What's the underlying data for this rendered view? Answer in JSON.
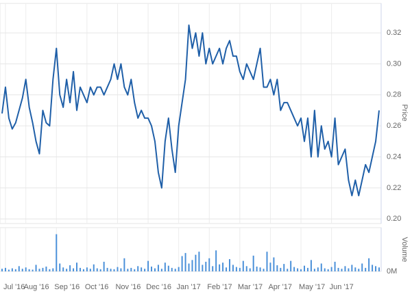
{
  "chart_data": [
    {
      "type": "line",
      "y_label": "Price",
      "color": "#1f5fa8",
      "grid": true,
      "categories": [
        null,
        "Jul '16",
        null,
        null,
        null,
        null,
        null,
        "Aug '16",
        null,
        null,
        null,
        null,
        null,
        null,
        null,
        null,
        "Sep '16",
        null,
        null,
        null,
        null,
        null,
        null,
        null,
        null,
        "Oct '16",
        null,
        null,
        null,
        null,
        null,
        null,
        null,
        null,
        "Nov '16",
        null,
        null,
        null,
        null,
        null,
        null,
        null,
        null,
        "Dec '16",
        null,
        null,
        null,
        null,
        null,
        null,
        null,
        null,
        "Jan '17",
        null,
        null,
        null,
        null,
        null,
        null,
        null,
        null,
        "Feb '17",
        null,
        null,
        null,
        null,
        null,
        null,
        null,
        null,
        "Mar '17",
        null,
        null,
        null,
        null,
        null,
        null,
        null,
        null,
        "Apr '17",
        null,
        null,
        null,
        null,
        null,
        null,
        null,
        null,
        "May '17",
        null,
        null,
        null,
        null,
        null,
        null,
        null,
        null,
        "Jun '17",
        null,
        null,
        null,
        null,
        null,
        null,
        null,
        null,
        null,
        null,
        null,
        null,
        null,
        null
      ],
      "values": [
        0.268,
        0.285,
        0.265,
        0.258,
        0.262,
        0.27,
        0.278,
        0.29,
        0.272,
        0.262,
        0.25,
        0.242,
        0.27,
        0.262,
        0.26,
        0.29,
        0.31,
        0.28,
        0.272,
        0.29,
        0.275,
        0.295,
        0.27,
        0.285,
        0.28,
        0.275,
        0.285,
        0.28,
        0.285,
        0.285,
        0.28,
        0.285,
        0.29,
        0.3,
        0.29,
        0.3,
        0.285,
        0.28,
        0.29,
        0.275,
        0.265,
        0.27,
        0.265,
        0.265,
        0.26,
        0.25,
        0.23,
        0.22,
        0.25,
        0.265,
        0.245,
        0.23,
        0.26,
        0.275,
        0.29,
        0.325,
        0.31,
        0.32,
        0.305,
        0.32,
        0.3,
        0.31,
        0.3,
        0.305,
        0.31,
        0.3,
        0.31,
        0.315,
        0.305,
        0.305,
        0.295,
        0.29,
        0.3,
        0.295,
        0.29,
        0.3,
        0.31,
        0.285,
        0.285,
        0.29,
        0.28,
        0.29,
        0.27,
        0.275,
        0.275,
        0.27,
        0.265,
        0.26,
        0.265,
        0.25,
        0.265,
        0.24,
        0.27,
        0.24,
        0.26,
        0.245,
        0.25,
        0.24,
        0.265,
        0.235,
        0.24,
        0.245,
        0.225,
        0.215,
        0.225,
        0.215,
        0.225,
        0.235,
        0.23,
        0.24,
        0.25,
        0.27
      ],
      "ylim": [
        0.197,
        0.339
      ],
      "yticks": [
        {
          "value": 0.2,
          "label": "0.20"
        },
        0.22,
        0.24,
        0.26,
        0.28,
        {
          "value": 0.3,
          "label": "0.30"
        },
        0.32
      ]
    },
    {
      "type": "bar",
      "y_label": "Volume",
      "color": "#4a90d9",
      "values": [
        0.6,
        0.8,
        0.4,
        0.7,
        0.5,
        1.2,
        0.6,
        0.9,
        0.5,
        0.4,
        1.5,
        0.6,
        0.8,
        1.1,
        0.5,
        0.7,
        8.5,
        1.8,
        0.9,
        0.6,
        1.4,
        0.7,
        2.0,
        0.8,
        0.5,
        0.9,
        0.6,
        1.6,
        0.7,
        0.5,
        2.2,
        0.8,
        0.6,
        0.5,
        1.0,
        0.7,
        3.0,
        0.6,
        0.8,
        0.5,
        1.2,
        0.9,
        0.6,
        2.4,
        1.1,
        0.7,
        1.5,
        0.6,
        2.0,
        1.3,
        0.8,
        0.6,
        1.0,
        3.5,
        4.2,
        1.8,
        2.6,
        3.8,
        4.5,
        1.5,
        2.2,
        3.0,
        1.2,
        4.8,
        1.6,
        2.0,
        0.9,
        2.8,
        1.5,
        1.0,
        0.8,
        2.4,
        1.2,
        0.7,
        3.6,
        1.1,
        0.9,
        0.6,
        4.5,
        2.0,
        3.2,
        1.4,
        0.8,
        1.7,
        0.6,
        2.4,
        1.0,
        0.7,
        0.5,
        1.3,
        0.8,
        2.6,
        0.6,
        0.9,
        1.8,
        0.7,
        0.5,
        1.0,
        2.2,
        0.8,
        0.6,
        1.2,
        0.7,
        1.5,
        0.9,
        0.6,
        1.8,
        0.8,
        3.0,
        1.5,
        1.2,
        0.9
      ],
      "ylim": [
        0,
        10
      ],
      "yticks": [
        {
          "value": 0,
          "label": "0M"
        }
      ]
    }
  ]
}
